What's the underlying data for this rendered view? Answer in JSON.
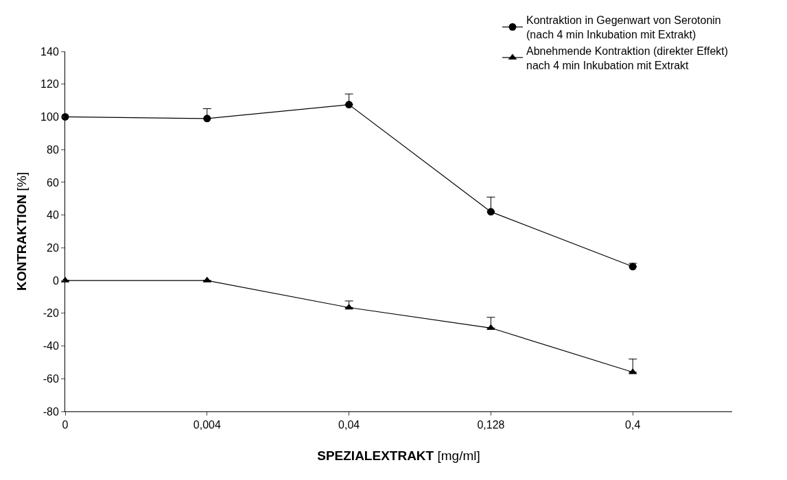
{
  "chart_data": {
    "type": "line",
    "xlabel": "SPEZIALEXTRAKT [mg/ml]",
    "ylabel": "KONTRAKTION [%]",
    "categories": [
      "0",
      "0,004",
      "0,04",
      "0,128",
      "0,4"
    ],
    "series": [
      {
        "name": "Kontraktion in Gegenwart von Serotonin\n(nach 4 min Inkubation mit Extrakt)",
        "color": "#000000",
        "marker": "circle",
        "values": [
          100,
          99,
          107.5,
          42,
          8.5
        ],
        "errors": [
          null,
          [
            99,
            105
          ],
          [
            107.5,
            114
          ],
          [
            42,
            51
          ],
          [
            8.5,
            10.5
          ]
        ]
      },
      {
        "name": "Abnehmende Kontraktion (direkter Effekt)\nnach 4 min Inkubation mit Extrakt",
        "color": "#000000",
        "marker": "triangle",
        "values": [
          0,
          0,
          -16.5,
          -29,
          -56
        ],
        "errors": [
          null,
          null,
          [
            -16.5,
            -12.5
          ],
          [
            -29,
            -22.5
          ],
          [
            -56,
            -48
          ]
        ]
      }
    ],
    "ylim": [
      -80,
      140
    ],
    "yticks": [
      -80,
      -60,
      -40,
      -20,
      0,
      20,
      40,
      60,
      80,
      100,
      120,
      140
    ],
    "legend": "top right",
    "line_style": "solid"
  }
}
